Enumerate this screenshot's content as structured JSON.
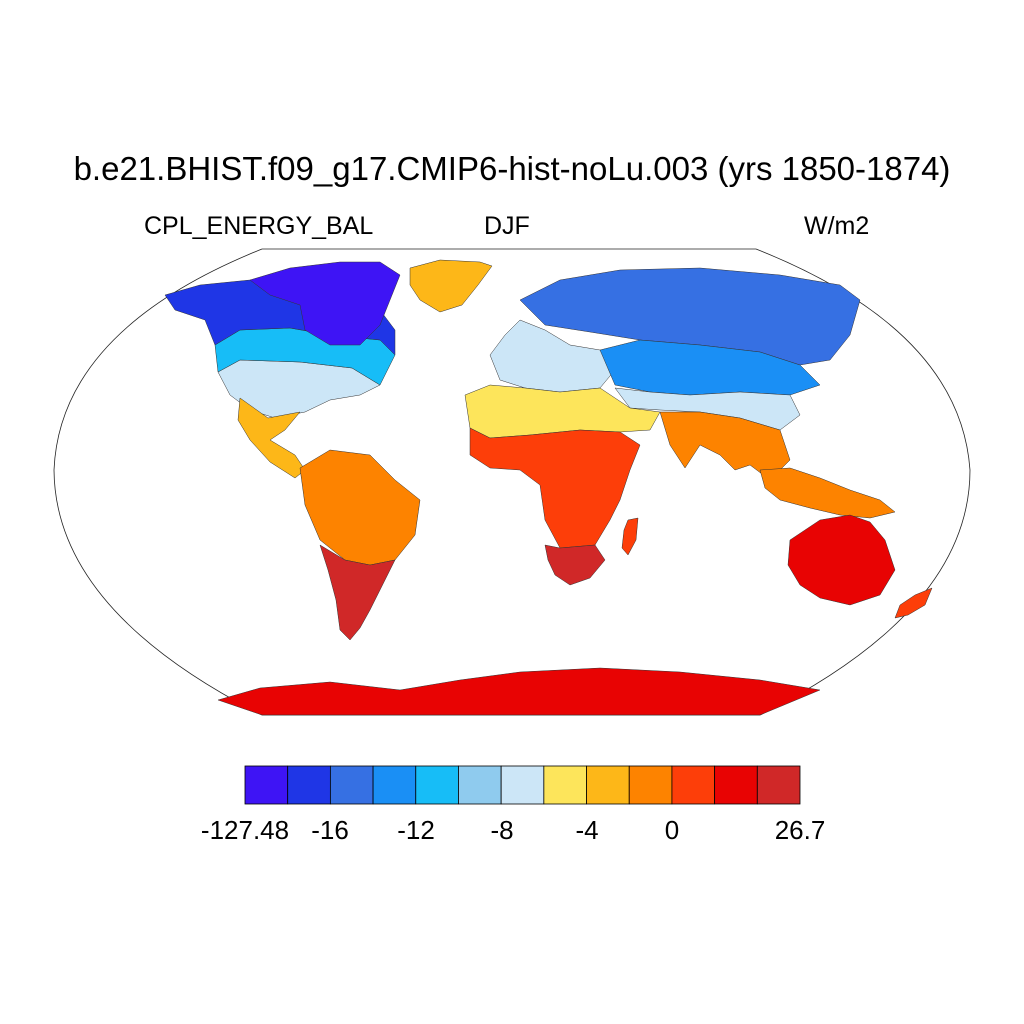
{
  "title": "b.e21.BHIST.f09_g17.CMIP6-hist-noLu.003 (yrs 1850-1874)",
  "variable": "CPL_ENERGY_BAL",
  "season": "DJF",
  "units": "W/m2",
  "colorbar": {
    "colors": [
      "#3e14f5",
      "#1f36e6",
      "#3670e3",
      "#1a8ff5",
      "#17bdf7",
      "#8fcbee",
      "#cce6f7",
      "#fde55b",
      "#fdb718",
      "#fd8300",
      "#fd3e09",
      "#e80303",
      "#d02828"
    ],
    "labels": [
      {
        "text": "-127.48",
        "boundary": 0
      },
      {
        "text": "-16",
        "boundary": 1
      },
      {
        "text": "-12",
        "boundary": 2
      },
      {
        "text": "-8",
        "boundary": 3
      },
      {
        "text": "-4",
        "boundary": 4
      },
      {
        "text": "0",
        "boundary": 5
      },
      {
        "text": "26.7",
        "boundary": 6.5
      }
    ]
  },
  "regions": [
    {
      "name": "north-america-arctic",
      "level": 0
    },
    {
      "name": "north-america-north",
      "level": 1
    },
    {
      "name": "north-america-mid",
      "level": 4
    },
    {
      "name": "north-america-temperate",
      "level": 6
    },
    {
      "name": "central-america",
      "level": 8
    },
    {
      "name": "greenland",
      "level": 8
    },
    {
      "name": "south-america-north",
      "level": 9
    },
    {
      "name": "south-america-south",
      "level": 12
    },
    {
      "name": "europe",
      "level": 6
    },
    {
      "name": "siberia",
      "level": 2
    },
    {
      "name": "asia-central",
      "level": 3
    },
    {
      "name": "asia-south-temperate",
      "level": 6
    },
    {
      "name": "sahara-middle-east",
      "level": 7
    },
    {
      "name": "india-southeast-asia",
      "level": 9
    },
    {
      "name": "africa-central",
      "level": 10
    },
    {
      "name": "africa-south",
      "level": 12
    },
    {
      "name": "maritime-continent",
      "level": 9
    },
    {
      "name": "australia",
      "level": 11
    },
    {
      "name": "new-zealand",
      "level": 10
    },
    {
      "name": "madagascar",
      "level": 10
    },
    {
      "name": "antarctica",
      "level": 11
    }
  ]
}
